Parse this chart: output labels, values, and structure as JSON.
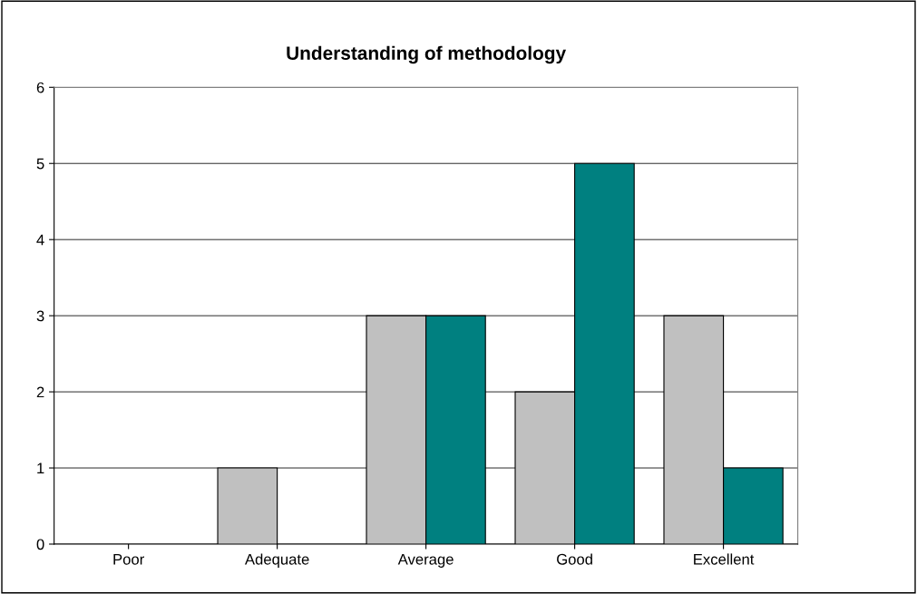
{
  "chart_data": {
    "type": "bar",
    "title": "Understanding of methodology",
    "categories": [
      "Poor",
      "Adequate",
      "Average",
      "Good",
      "Excellent"
    ],
    "series": [
      {
        "color": "#c0c0c0",
        "values": [
          0,
          1,
          3,
          2,
          3
        ]
      },
      {
        "color": "#008080",
        "values": [
          0,
          0,
          3,
          5,
          1
        ]
      }
    ],
    "ylim": [
      0,
      6
    ],
    "yticks": [
      0,
      1,
      2,
      3,
      4,
      5,
      6
    ],
    "grid": "y"
  }
}
